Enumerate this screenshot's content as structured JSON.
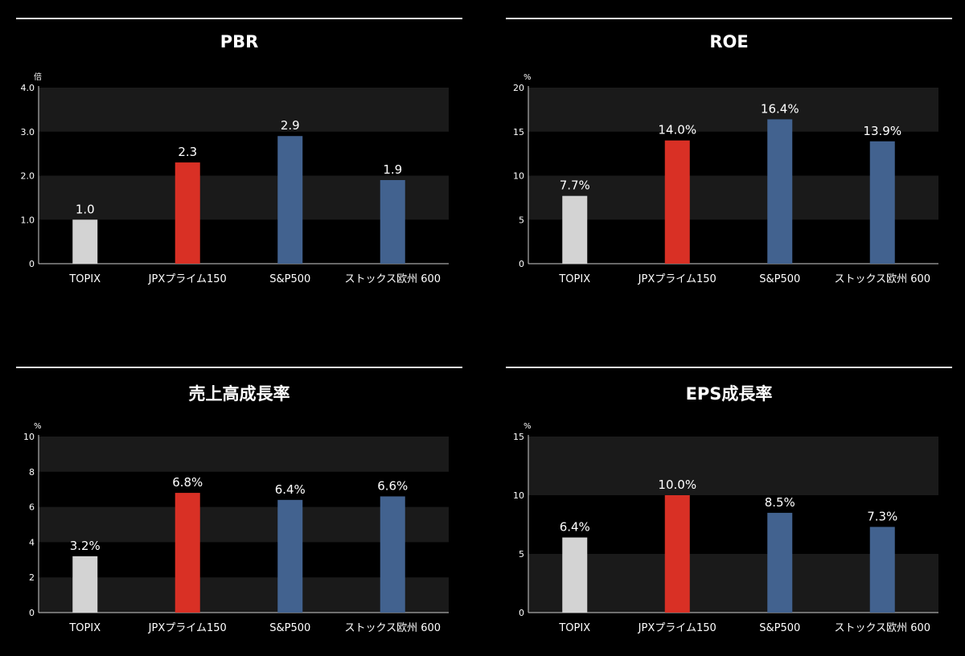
{
  "colors": {
    "background": "#000000",
    "band": "#1a1a1a",
    "topix": "#d3d3d3",
    "jpx": "#d93025",
    "overseas": "#42628f"
  },
  "chart_data": [
    {
      "type": "bar",
      "title": "PBR",
      "unit": "倍",
      "categories": [
        "TOPIX",
        "JPXプライム150",
        "S&P500",
        "ストックス欧州 600"
      ],
      "values": [
        1.0,
        2.3,
        2.9,
        1.9
      ],
      "data_labels": [
        "1.0",
        "2.3",
        "2.9",
        "1.9"
      ],
      "ylim": [
        0,
        4
      ],
      "yticks": [
        0,
        1,
        2,
        3,
        4
      ],
      "ytick_labels": [
        "0",
        "1.0",
        "2.0",
        "3.0",
        "4.0"
      ],
      "bar_colors": [
        "#d3d3d3",
        "#d93025",
        "#42628f",
        "#42628f"
      ]
    },
    {
      "type": "bar",
      "title": "ROE",
      "unit": "%",
      "categories": [
        "TOPIX",
        "JPXプライム150",
        "S&P500",
        "ストックス欧州 600"
      ],
      "values": [
        7.7,
        14.0,
        16.4,
        13.9
      ],
      "data_labels": [
        "7.7%",
        "14.0%",
        "16.4%",
        "13.9%"
      ],
      "ylim": [
        0,
        20
      ],
      "yticks": [
        0,
        5,
        10,
        15,
        20
      ],
      "ytick_labels": [
        "0",
        "5",
        "10",
        "15",
        "20"
      ],
      "bar_colors": [
        "#d3d3d3",
        "#d93025",
        "#42628f",
        "#42628f"
      ]
    },
    {
      "type": "bar",
      "title": "売上高成長率",
      "unit": "%",
      "categories": [
        "TOPIX",
        "JPXプライム150",
        "S&P500",
        "ストックス欧州 600"
      ],
      "values": [
        3.2,
        6.8,
        6.4,
        6.6
      ],
      "data_labels": [
        "3.2%",
        "6.8%",
        "6.4%",
        "6.6%"
      ],
      "ylim": [
        0,
        10
      ],
      "yticks": [
        0,
        2,
        4,
        6,
        8,
        10
      ],
      "ytick_labels": [
        "0",
        "2",
        "4",
        "6",
        "8",
        "10"
      ],
      "bar_colors": [
        "#d3d3d3",
        "#d93025",
        "#42628f",
        "#42628f"
      ]
    },
    {
      "type": "bar",
      "title": "EPS成長率",
      "unit": "%",
      "categories": [
        "TOPIX",
        "JPXプライム150",
        "S&P500",
        "ストックス欧州 600"
      ],
      "values": [
        6.4,
        10.0,
        8.5,
        7.3
      ],
      "data_labels": [
        "6.4%",
        "10.0%",
        "8.5%",
        "7.3%"
      ],
      "ylim": [
        0,
        15
      ],
      "yticks": [
        0,
        5,
        10,
        15
      ],
      "ytick_labels": [
        "0",
        "5",
        "10",
        "15"
      ],
      "bar_colors": [
        "#d3d3d3",
        "#d93025",
        "#42628f",
        "#42628f"
      ]
    }
  ]
}
